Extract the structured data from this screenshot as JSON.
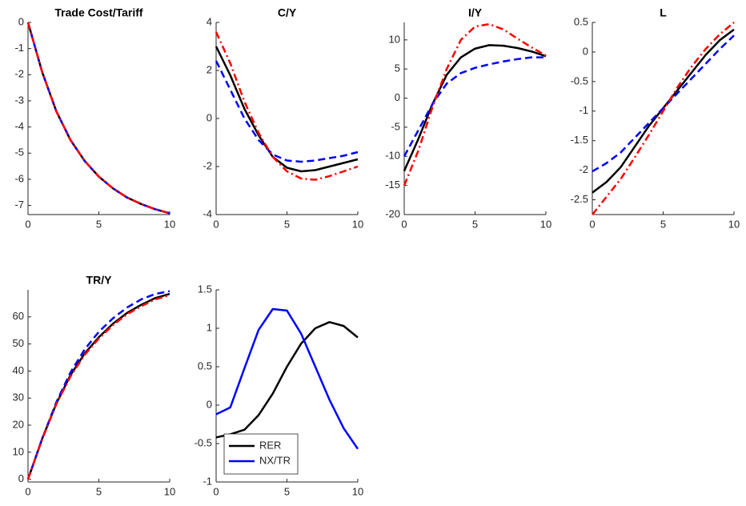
{
  "chart_data": [
    {
      "type": "line",
      "title": "Trade Cost/Tariff",
      "x": [
        0,
        1,
        2,
        3,
        4,
        5,
        6,
        7,
        8,
        9,
        10
      ],
      "xlim": [
        0,
        10
      ],
      "xticks": [
        0,
        5,
        10
      ],
      "ylim": [
        -7.35,
        0
      ],
      "yticks": [
        -7,
        -6,
        -5,
        -4,
        -3,
        -2,
        -1,
        0
      ],
      "series": [
        {
          "color": "#000000",
          "line_style": "solid",
          "values": [
            0,
            -1.9,
            -3.4,
            -4.5,
            -5.3,
            -5.9,
            -6.35,
            -6.7,
            -6.95,
            -7.15,
            -7.3
          ]
        },
        {
          "color": "#0000ff",
          "line_style": "dashed",
          "values": [
            0,
            -1.9,
            -3.4,
            -4.5,
            -5.3,
            -5.9,
            -6.35,
            -6.7,
            -6.95,
            -7.15,
            -7.3
          ]
        },
        {
          "color": "#ff0000",
          "line_style": "dashdot",
          "values": [
            0,
            -1.9,
            -3.4,
            -4.5,
            -5.3,
            -5.9,
            -6.35,
            -6.7,
            -6.95,
            -7.15,
            -7.3
          ]
        }
      ]
    },
    {
      "type": "line",
      "title": "C/Y",
      "x": [
        0,
        1,
        2,
        3,
        4,
        5,
        6,
        7,
        8,
        9,
        10
      ],
      "xlim": [
        0,
        10
      ],
      "xticks": [
        0,
        5,
        10
      ],
      "ylim": [
        -4,
        4
      ],
      "yticks": [
        -4,
        -2,
        0,
        2,
        4
      ],
      "series": [
        {
          "color": "#000000",
          "line_style": "solid",
          "values": [
            3.0,
            1.8,
            0.4,
            -0.7,
            -1.6,
            -2.05,
            -2.2,
            -2.15,
            -2.0,
            -1.85,
            -1.7
          ]
        },
        {
          "color": "#0000ff",
          "line_style": "dashed",
          "values": [
            2.4,
            1.2,
            0.0,
            -0.9,
            -1.5,
            -1.75,
            -1.8,
            -1.75,
            -1.65,
            -1.55,
            -1.4
          ]
        },
        {
          "color": "#ff0000",
          "line_style": "dashdot",
          "values": [
            3.6,
            2.3,
            0.7,
            -0.6,
            -1.6,
            -2.2,
            -2.5,
            -2.55,
            -2.4,
            -2.2,
            -2.0
          ]
        }
      ]
    },
    {
      "type": "line",
      "title": "I/Y",
      "x": [
        0,
        1,
        2,
        3,
        4,
        5,
        6,
        7,
        8,
        9,
        10
      ],
      "xlim": [
        0,
        10
      ],
      "xticks": [
        0,
        5,
        10
      ],
      "ylim": [
        -20,
        13
      ],
      "yticks": [
        -20,
        -15,
        -10,
        -5,
        0,
        5,
        10
      ],
      "series": [
        {
          "color": "#000000",
          "line_style": "solid",
          "values": [
            -12.5,
            -7,
            -1,
            4,
            7,
            8.5,
            9.1,
            9,
            8.6,
            8,
            7.2
          ]
        },
        {
          "color": "#0000ff",
          "line_style": "dashed",
          "values": [
            -10,
            -5.5,
            -1,
            2.5,
            4.3,
            5.2,
            5.8,
            6.3,
            6.7,
            7,
            7
          ]
        },
        {
          "color": "#ff0000",
          "line_style": "dashdot",
          "values": [
            -15,
            -9,
            -1.5,
            5,
            10,
            12.3,
            12.7,
            11.8,
            10.2,
            8.7,
            7.3
          ]
        }
      ]
    },
    {
      "type": "line",
      "title": "L",
      "x": [
        0,
        1,
        2,
        3,
        4,
        5,
        6,
        7,
        8,
        9,
        10
      ],
      "xlim": [
        0,
        10
      ],
      "xticks": [
        0,
        5,
        10
      ],
      "ylim": [
        -2.75,
        0.5
      ],
      "yticks": [
        -2.5,
        -2,
        -1.5,
        -1,
        -0.5,
        0,
        0.5
      ],
      "series": [
        {
          "color": "#000000",
          "line_style": "solid",
          "values": [
            -2.38,
            -2.2,
            -1.95,
            -1.6,
            -1.25,
            -0.95,
            -0.65,
            -0.35,
            -0.05,
            0.2,
            0.38
          ]
        },
        {
          "color": "#0000ff",
          "line_style": "dashed",
          "values": [
            -2.02,
            -1.88,
            -1.7,
            -1.45,
            -1.2,
            -0.95,
            -0.7,
            -0.45,
            -0.2,
            0.05,
            0.28
          ]
        },
        {
          "color": "#ff0000",
          "line_style": "dashdot",
          "values": [
            -2.75,
            -2.45,
            -2.15,
            -1.78,
            -1.4,
            -1.0,
            -0.6,
            -0.25,
            0.05,
            0.3,
            0.5
          ]
        }
      ]
    },
    {
      "type": "line",
      "title": "TR/Y",
      "x": [
        0,
        1,
        2,
        3,
        4,
        5,
        6,
        7,
        8,
        9,
        10
      ],
      "xlim": [
        0,
        10
      ],
      "xticks": [
        0,
        5,
        10
      ],
      "ylim": [
        -1,
        70
      ],
      "yticks": [
        0,
        10,
        20,
        30,
        40,
        50,
        60
      ],
      "series": [
        {
          "color": "#000000",
          "line_style": "solid",
          "values": [
            0,
            15,
            28,
            38.5,
            46.5,
            52.5,
            57.5,
            61.5,
            64.5,
            67,
            68.5
          ]
        },
        {
          "color": "#0000ff",
          "line_style": "dashed",
          "values": [
            0,
            15,
            28.5,
            39.5,
            48,
            54.5,
            59.5,
            63.5,
            66.5,
            68.5,
            69.5
          ]
        },
        {
          "color": "#ff0000",
          "line_style": "dashdot",
          "values": [
            0,
            14.8,
            27.8,
            38,
            46,
            52,
            57,
            61,
            64,
            66.5,
            68
          ]
        }
      ]
    },
    {
      "type": "line",
      "x": [
        0,
        1,
        2,
        3,
        4,
        5,
        6,
        7,
        8,
        9,
        10
      ],
      "xlim": [
        0,
        10
      ],
      "xticks": [
        0,
        5,
        10
      ],
      "ylim": [
        -1,
        1.5
      ],
      "yticks": [
        -1,
        -0.5,
        0,
        0.5,
        1,
        1.5
      ],
      "legend": "lower left",
      "series": [
        {
          "name": "RER",
          "color": "#000000",
          "line_style": "solid",
          "values": [
            -0.42,
            -0.38,
            -0.32,
            -0.13,
            0.15,
            0.5,
            0.8,
            1.0,
            1.08,
            1.03,
            0.88
          ]
        },
        {
          "name": "NX/TR",
          "color": "#0000ff",
          "line_style": "solid",
          "values": [
            -0.12,
            -0.03,
            0.48,
            0.98,
            1.25,
            1.23,
            0.93,
            0.5,
            0.07,
            -0.3,
            -0.57
          ]
        }
      ]
    }
  ]
}
